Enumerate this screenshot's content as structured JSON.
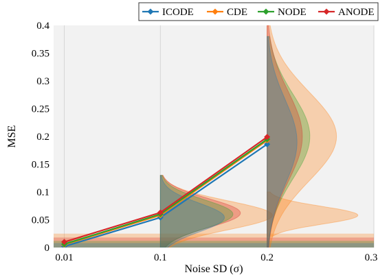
{
  "chart_data": {
    "type": "line",
    "title": "",
    "xlabel": "Noise SD (σ)",
    "ylabel": "MSE",
    "xlim": [
      0.0,
      0.3
    ],
    "ylim": [
      0,
      0.4
    ],
    "xticks": [
      0.01,
      0.1,
      0.2,
      0.3
    ],
    "xtick_labels": [
      "0.01",
      "0.1",
      "0.2",
      "0.3"
    ],
    "yticks": [
      0,
      0.05,
      0.1,
      0.15,
      0.2,
      0.25,
      0.3,
      0.35,
      0.4
    ],
    "ytick_labels": [
      "0",
      "0.05",
      "0.1",
      "0.15",
      "0.2",
      "0.25",
      "0.3",
      "0.35",
      "0.4"
    ],
    "grid": true,
    "legend_position": "top-right",
    "x": [
      0.01,
      0.1,
      0.2
    ],
    "series": [
      {
        "name": "ICODE",
        "color": "#1f77b4",
        "values": [
          0.002,
          0.054,
          0.186
        ]
      },
      {
        "name": "CDE",
        "color": "#ff7f0e",
        "values": [
          0.005,
          0.058,
          0.193
        ]
      },
      {
        "name": "NODE",
        "color": "#2ca02c",
        "values": [
          0.006,
          0.06,
          0.195
        ]
      },
      {
        "name": "ANODE",
        "color": "#d62728",
        "values": [
          0.01,
          0.063,
          0.199
        ]
      }
    ],
    "distributions": [
      {
        "series": "CDE",
        "x": 0.1,
        "y_range": [
          0.0,
          0.13
        ],
        "mode": 0.058,
        "width": 0.105
      },
      {
        "series": "ANODE",
        "x": 0.1,
        "y_range": [
          0.0,
          0.13
        ],
        "mode": 0.062,
        "width": 0.075
      },
      {
        "series": "NODE",
        "x": 0.1,
        "y_range": [
          0.0,
          0.13
        ],
        "mode": 0.06,
        "width": 0.068
      },
      {
        "series": "ICODE",
        "x": 0.1,
        "y_range": [
          0.0,
          0.13
        ],
        "mode": 0.054,
        "width": 0.06
      },
      {
        "series": "CDE",
        "x": 0.2,
        "y_range": [
          0.0,
          0.4
        ],
        "mode": 0.2,
        "width": 0.065
      },
      {
        "series": "CDE",
        "x": 0.2,
        "y_range": [
          0.02,
          0.1
        ],
        "mode": 0.058,
        "width": 0.085
      },
      {
        "series": "NODE",
        "x": 0.2,
        "y_range": [
          0.0,
          0.38
        ],
        "mode": 0.2,
        "width": 0.04
      },
      {
        "series": "ANODE",
        "x": 0.2,
        "y_range": [
          0.0,
          0.4
        ],
        "mode": 0.2,
        "width": 0.033
      },
      {
        "series": "ICODE",
        "x": 0.2,
        "y_range": [
          0.0,
          0.38
        ],
        "mode": 0.19,
        "width": 0.028
      }
    ],
    "baseline_bands": [
      {
        "series": "CDE",
        "y_range": [
          0.0,
          0.025
        ]
      },
      {
        "series": "ANODE",
        "y_range": [
          0.0,
          0.018
        ]
      },
      {
        "series": "NODE",
        "y_range": [
          0.0,
          0.012
        ]
      },
      {
        "series": "ICODE",
        "y_range": [
          0.0,
          0.008
        ]
      }
    ]
  }
}
